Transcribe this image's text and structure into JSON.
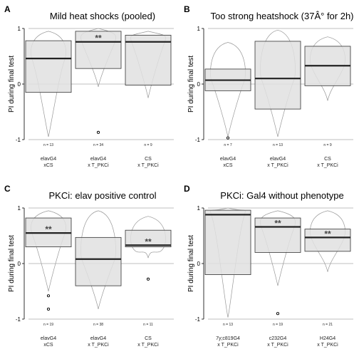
{
  "chart_data": [
    {
      "type": "box",
      "letter": "A",
      "title": "Mild heat shocks (pooled)",
      "ylabel": "PI during final test",
      "ylim": [
        -1,
        1
      ],
      "yticks": [
        "-1",
        "0",
        "1"
      ],
      "groups": [
        {
          "label1": "elavG4",
          "label2": "xCS",
          "n": "n = 13",
          "q1": -0.15,
          "median": 0.46,
          "q3": 0.78,
          "whisker_low": -0.95,
          "whisker_high": 0.95,
          "outliers": [],
          "sig": ""
        },
        {
          "label1": "elavG4",
          "label2": "x T_PKCi",
          "n": "n = 34",
          "q1": 0.28,
          "median": 0.76,
          "q3": 0.95,
          "whisker_low": -0.05,
          "whisker_high": 1.0,
          "outliers": [
            -0.87
          ],
          "sig": "**"
        },
        {
          "label1": "CS",
          "label2": "x T_PKCi",
          "n": "n = 9",
          "q1": -0.02,
          "median": 0.76,
          "q3": 0.88,
          "whisker_low": -0.25,
          "whisker_high": 0.95,
          "outliers": [],
          "sig": ""
        }
      ]
    },
    {
      "type": "box",
      "letter": "B",
      "title": "Too strong heatshock (37Â° for 2h)",
      "ylabel": "PI during final test",
      "ylim": [
        -1,
        1
      ],
      "yticks": [
        "-1",
        "0",
        "1"
      ],
      "groups": [
        {
          "label1": "elavG4",
          "label2": "xCS",
          "n": "n = 7",
          "q1": -0.12,
          "median": 0.07,
          "q3": 0.27,
          "whisker_low": -0.95,
          "whisker_high": 0.75,
          "outliers": [
            -0.97
          ],
          "sig": ""
        },
        {
          "label1": "elavG4",
          "label2": "x T_PKCi",
          "n": "n = 13",
          "q1": -0.45,
          "median": 0.1,
          "q3": 0.77,
          "whisker_low": -0.95,
          "whisker_high": 0.97,
          "outliers": [],
          "sig": ""
        },
        {
          "label1": "CS",
          "label2": "x T_PKCi",
          "n": "n = 9",
          "q1": -0.03,
          "median": 0.33,
          "q3": 0.68,
          "whisker_low": -0.3,
          "whisker_high": 0.85,
          "outliers": [],
          "sig": ""
        }
      ]
    },
    {
      "type": "box",
      "letter": "C",
      "title": "PKCi: elav positive control",
      "ylabel": "PI during final test",
      "ylim": [
        -1,
        1
      ],
      "yticks": [
        "-1",
        "0",
        "1"
      ],
      "groups": [
        {
          "label1": "elavG4",
          "label2": "xCS",
          "n": "n = 19",
          "q1": 0.3,
          "median": 0.55,
          "q3": 0.82,
          "whisker_low": -0.5,
          "whisker_high": 0.95,
          "outliers": [
            -0.58,
            -0.82
          ],
          "sig": "**"
        },
        {
          "label1": "elavG4",
          "label2": "x T_PKCi",
          "n": "n = 38",
          "q1": -0.4,
          "median": 0.08,
          "q3": 0.47,
          "whisker_low": -0.82,
          "whisker_high": 0.95,
          "outliers": [],
          "sig": ""
        },
        {
          "label1": "CS",
          "label2": "x T_PKCi",
          "n": "n = 11",
          "q1": 0.3,
          "median": 0.33,
          "q3": 0.6,
          "whisker_low": 0.1,
          "whisker_high": 0.85,
          "outliers": [
            -0.28
          ],
          "sig": "**"
        }
      ]
    },
    {
      "type": "box",
      "letter": "D",
      "title": "PKCi: Gal4 without phenotype",
      "ylabel": "PI during final test",
      "ylim": [
        -1,
        1
      ],
      "yticks": [
        "-1",
        "0",
        "1"
      ],
      "groups": [
        {
          "label1": "7y;c819G4",
          "label2": "x T_PKCi",
          "n": "n = 13",
          "q1": -0.2,
          "median": 0.88,
          "q3": 0.96,
          "whisker_low": -0.97,
          "whisker_high": 1.0,
          "outliers": [],
          "sig": ""
        },
        {
          "label1": "c232G4",
          "label2": "x T_PKCi",
          "n": "n = 19",
          "q1": 0.2,
          "median": 0.66,
          "q3": 0.82,
          "whisker_low": -0.4,
          "whisker_high": 0.95,
          "outliers": [
            -0.9
          ],
          "sig": "**"
        },
        {
          "label1": "H24G4",
          "label2": "x T_PKCi",
          "n": "n = 21",
          "q1": 0.22,
          "median": 0.47,
          "q3": 0.62,
          "whisker_low": -0.15,
          "whisker_high": 0.95,
          "outliers": [],
          "sig": "**"
        }
      ]
    }
  ]
}
